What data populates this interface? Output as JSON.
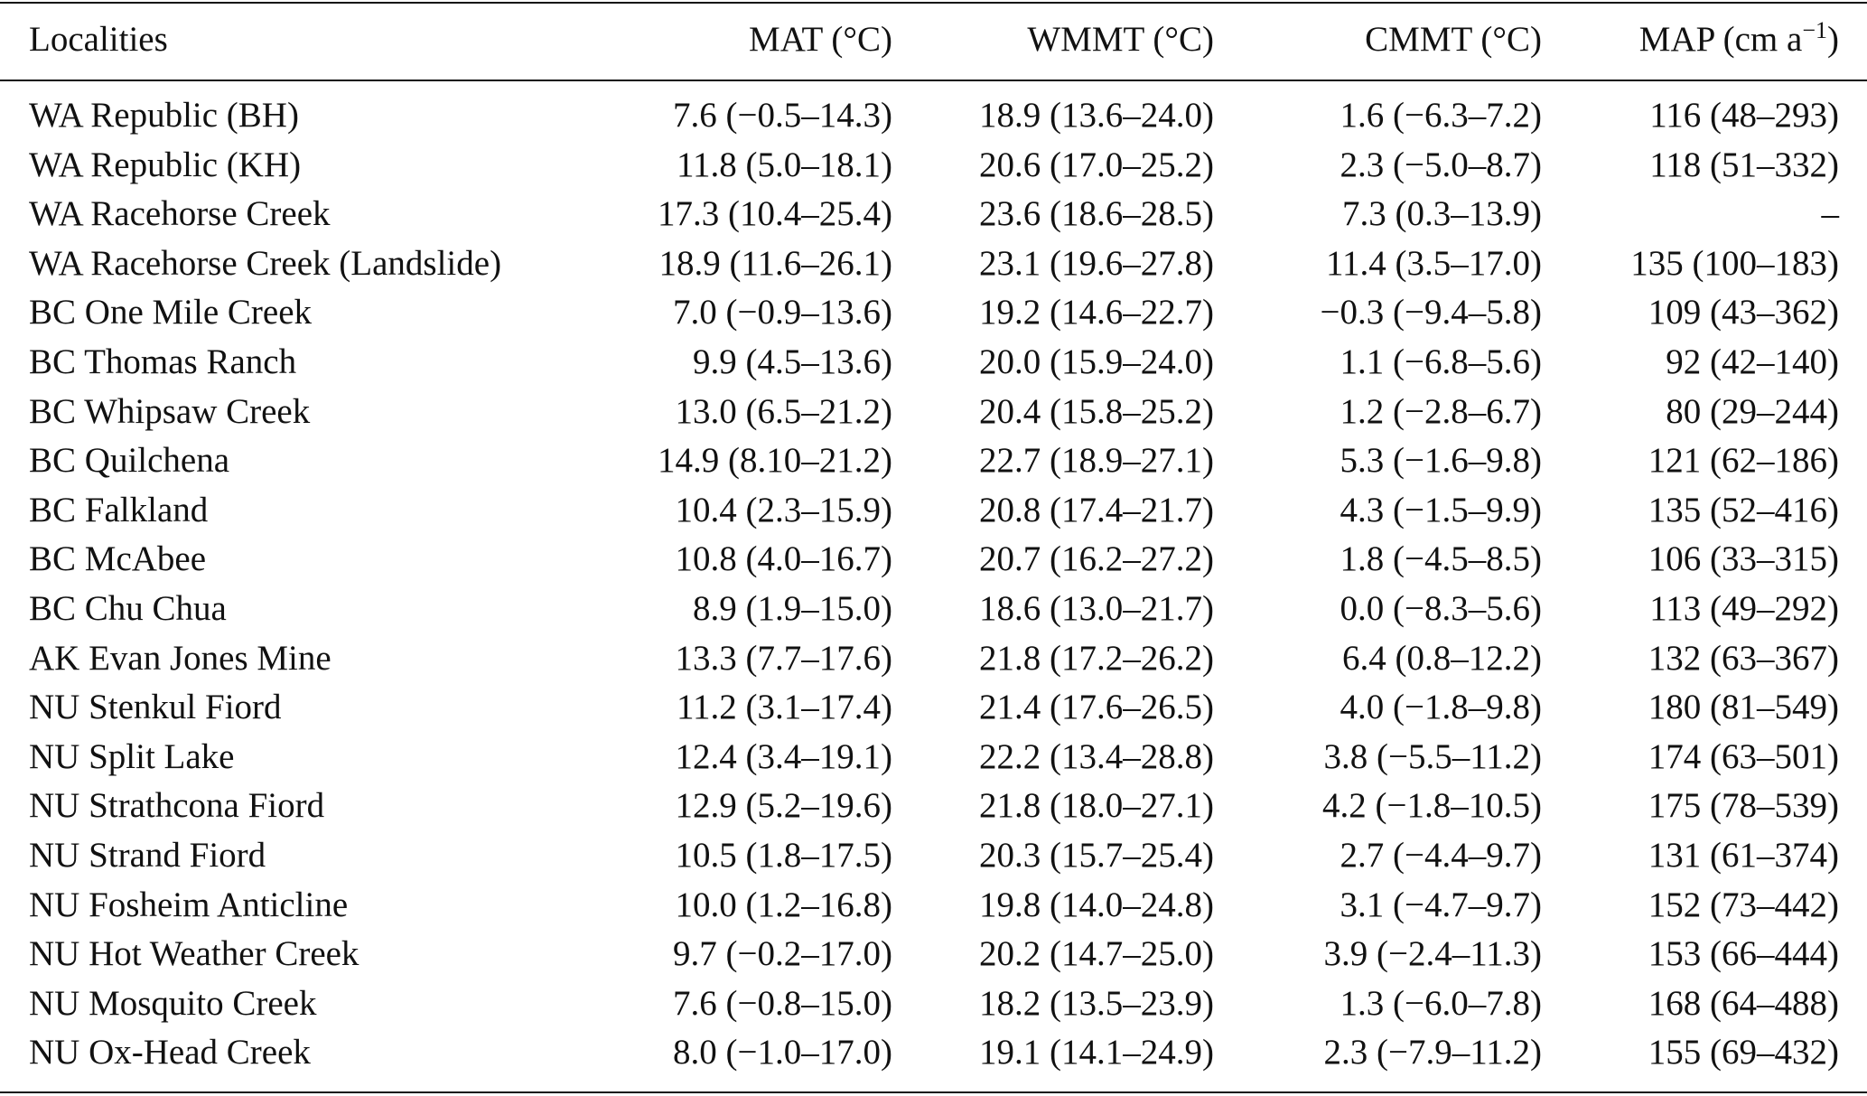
{
  "table": {
    "header": [
      "Localities",
      "MAT (°C)",
      "WMMT (°C)",
      "CMMT (°C)",
      {
        "main": "MAP (cm a",
        "sup": "−1",
        "close": ")"
      }
    ],
    "rows": [
      [
        "WA Republic (BH)",
        "7.6 (−0.5–14.3)",
        "18.9 (13.6–24.0)",
        "1.6 (−6.3–7.2)",
        "116 (48–293)"
      ],
      [
        "WA Republic (KH)",
        "11.8 (5.0–18.1)",
        "20.6 (17.0–25.2)",
        "2.3 (−5.0–8.7)",
        "118 (51–332)"
      ],
      [
        "WA Racehorse Creek",
        "17.3 (10.4–25.4)",
        "23.6 (18.6–28.5)",
        "7.3 (0.3–13.9)",
        "–"
      ],
      [
        "WA Racehorse Creek (Landslide)",
        "18.9 (11.6–26.1)",
        "23.1 (19.6–27.8)",
        "11.4 (3.5–17.0)",
        "135 (100–183)"
      ],
      [
        "BC One Mile Creek",
        "7.0 (−0.9–13.6)",
        "19.2 (14.6–22.7)",
        "−0.3 (−9.4–5.8)",
        "109 (43–362)"
      ],
      [
        "BC Thomas Ranch",
        "9.9 (4.5–13.6)",
        "20.0 (15.9–24.0)",
        "1.1 (−6.8–5.6)",
        "92 (42–140)"
      ],
      [
        "BC Whipsaw Creek",
        "13.0 (6.5–21.2)",
        "20.4 (15.8–25.2)",
        "1.2 (−2.8–6.7)",
        "80 (29–244)"
      ],
      [
        "BC Quilchena",
        "14.9 (8.10–21.2)",
        "22.7 (18.9–27.1)",
        "5.3 (−1.6–9.8)",
        "121 (62–186)"
      ],
      [
        "BC Falkland",
        "10.4 (2.3–15.9)",
        "20.8 (17.4–21.7)",
        "4.3 (−1.5–9.9)",
        "135 (52–416)"
      ],
      [
        "BC McAbee",
        "10.8 (4.0–16.7)",
        "20.7 (16.2–27.2)",
        "1.8 (−4.5–8.5)",
        "106 (33–315)"
      ],
      [
        "BC Chu Chua",
        "8.9 (1.9–15.0)",
        "18.6 (13.0–21.7)",
        "0.0 (−8.3–5.6)",
        "113 (49–292)"
      ],
      [
        "AK Evan Jones Mine",
        "13.3 (7.7–17.6)",
        "21.8 (17.2–26.2)",
        "6.4 (0.8–12.2)",
        "132 (63–367)"
      ],
      [
        "NU Stenkul Fiord",
        "11.2 (3.1–17.4)",
        "21.4 (17.6–26.5)",
        "4.0 (−1.8–9.8)",
        "180 (81–549)"
      ],
      [
        "NU Split Lake",
        "12.4 (3.4–19.1)",
        "22.2 (13.4–28.8)",
        "3.8 (−5.5–11.2)",
        "174 (63–501)"
      ],
      [
        "NU Strathcona Fiord",
        "12.9 (5.2–19.6)",
        "21.8 (18.0–27.1)",
        "4.2 (−1.8–10.5)",
        "175 (78–539)"
      ],
      [
        "NU Strand Fiord",
        "10.5 (1.8–17.5)",
        "20.3 (15.7–25.4)",
        "2.7 (−4.4–9.7)",
        "131 (61–374)"
      ],
      [
        "NU Fosheim Anticline",
        "10.0 (1.2–16.8)",
        "19.8 (14.0–24.8)",
        "3.1 (−4.7–9.7)",
        "152 (73–442)"
      ],
      [
        "NU Hot Weather Creek",
        "9.7 (−0.2–17.0)",
        "20.2 (14.7–25.0)",
        "3.9 (−2.4–11.3)",
        "153 (66–444)"
      ],
      [
        "NU Mosquito Creek",
        "7.6 (−0.8–15.0)",
        "18.2 (13.5–23.9)",
        "1.3 (−6.0–7.8)",
        "168 (64–488)"
      ],
      [
        "NU Ox-Head Creek",
        "8.0 (−1.0–17.0)",
        "19.1 (14.1–24.9)",
        "2.3 (−7.9–11.2)",
        "155 (69–432)"
      ]
    ]
  }
}
